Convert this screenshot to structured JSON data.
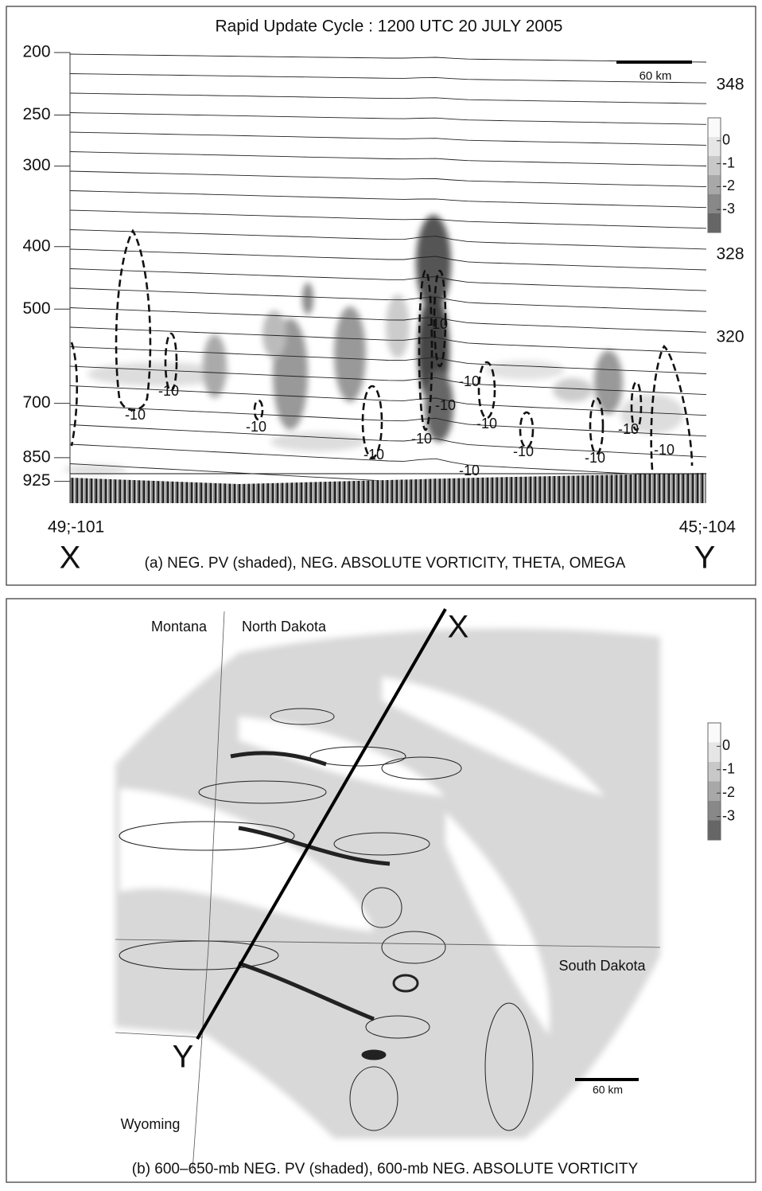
{
  "chart_data": [
    {
      "type": "cross-section",
      "title": "Rapid Update Cycle : 1200 UTC 20 JULY 2005",
      "ylim": [
        200,
        1000
      ],
      "yticks": [
        200,
        250,
        300,
        400,
        500,
        700,
        850,
        925
      ],
      "log_scale": true,
      "theta_labels": [
        348,
        328,
        320
      ],
      "omega_labels": [
        -10,
        -10,
        -10,
        -10,
        -10,
        -10,
        -10,
        -10,
        -10,
        -10,
        -10,
        -10,
        -10,
        -10
      ],
      "colorbar_lim": [
        1,
        -4
      ],
      "colorbar_ticks": [
        0,
        -1,
        -2,
        -3
      ],
      "scale_bar": "60 km",
      "x_start_label": "49;-101",
      "x_end_label": "45;-104",
      "start_marker": "X",
      "end_marker": "Y",
      "caption": "(a) NEG. PV (shaded), NEG. ABSOLUTE VORTICITY, THETA, OMEGA"
    },
    {
      "type": "map",
      "regions": [
        "Montana",
        "North Dakota",
        "South Dakota",
        "Wyoming"
      ],
      "colorbar_lim": [
        1,
        -4
      ],
      "colorbar_ticks": [
        0,
        -1,
        -2,
        -3
      ],
      "scale_bar": "60 km",
      "start_marker": "X",
      "end_marker": "Y",
      "caption": "(b) 600–650-mb NEG. PV (shaded), 600-mb NEG. ABSOLUTE VORTICITY"
    }
  ]
}
